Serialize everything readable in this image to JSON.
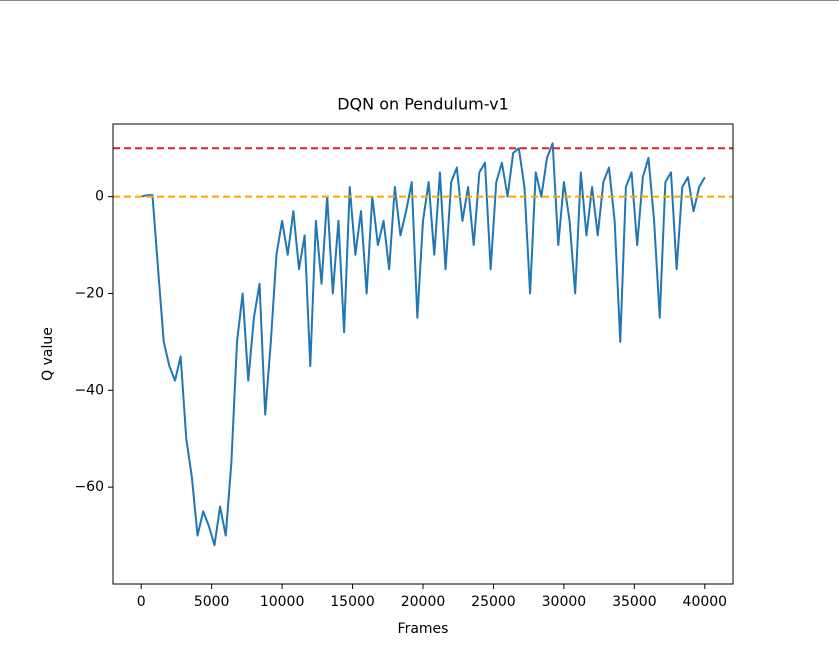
{
  "chart_data": {
    "type": "line",
    "title": "DQN on Pendulum-v1",
    "x_label": "Frames",
    "y_label": "Q value",
    "x": [
      0,
      400,
      800,
      1200,
      1600,
      2000,
      2400,
      2800,
      3200,
      3600,
      4000,
      4400,
      4800,
      5200,
      5600,
      6000,
      6400,
      6800,
      7200,
      7600,
      8000,
      8400,
      8800,
      9200,
      9600,
      10000,
      10400,
      10800,
      11200,
      11600,
      12000,
      12400,
      12800,
      13200,
      13600,
      14000,
      14400,
      14800,
      15200,
      15600,
      16000,
      16400,
      16800,
      17200,
      17600,
      18000,
      18400,
      18800,
      19200,
      19600,
      20000,
      20400,
      20800,
      21200,
      21600,
      22000,
      22400,
      22800,
      23200,
      23600,
      24000,
      24400,
      24800,
      25200,
      25600,
      26000,
      26400,
      26800,
      27200,
      27600,
      28000,
      28400,
      28800,
      29200,
      29600,
      30000,
      30400,
      30800,
      31200,
      31600,
      32000,
      32400,
      32800,
      33200,
      33600,
      34000,
      34400,
      34800,
      35200,
      35600,
      36000,
      36400,
      36800,
      37200,
      37600,
      38000,
      38400,
      38800,
      39200,
      39600,
      40000
    ],
    "series": [
      {
        "name": "Q value",
        "color": "#1f77b4",
        "values": [
          0,
          0.3,
          0.3,
          -15,
          -30,
          -35,
          -38,
          -33,
          -50,
          -58,
          -70,
          -65,
          -68,
          -72,
          -64,
          -70,
          -55,
          -30,
          -20,
          -38,
          -25,
          -18,
          -45,
          -30,
          -12,
          -5,
          -12,
          -3,
          -15,
          -8,
          -35,
          -5,
          -18,
          0,
          -20,
          -5,
          -28,
          2,
          -12,
          -3,
          -20,
          0,
          -10,
          -5,
          -15,
          2,
          -8,
          -3,
          3,
          -25,
          -5,
          3,
          -12,
          5,
          -15,
          3,
          6,
          -5,
          2,
          -10,
          5,
          7,
          -15,
          3,
          7,
          0,
          9,
          10,
          2,
          -20,
          5,
          0,
          8,
          11,
          -10,
          3,
          -5,
          -20,
          5,
          -8,
          2,
          -8,
          3,
          6,
          -5,
          -30,
          2,
          5,
          -10,
          4,
          8,
          -5,
          -25,
          3,
          5,
          -15,
          2,
          4,
          -3,
          2,
          4
        ]
      }
    ],
    "hlines": [
      {
        "value": 10,
        "color": "#d62728"
      },
      {
        "value": 0,
        "color": "#ffa500"
      }
    ],
    "xlim": [
      -2000,
      42000
    ],
    "ylim": [
      -80,
      15
    ],
    "xticks": [
      0,
      5000,
      10000,
      15000,
      20000,
      25000,
      30000,
      35000,
      40000
    ],
    "yticks": [
      {
        "value": -60,
        "label": "−60"
      },
      {
        "value": -40,
        "label": "−40"
      },
      {
        "value": -20,
        "label": "−20"
      },
      0
    ]
  }
}
